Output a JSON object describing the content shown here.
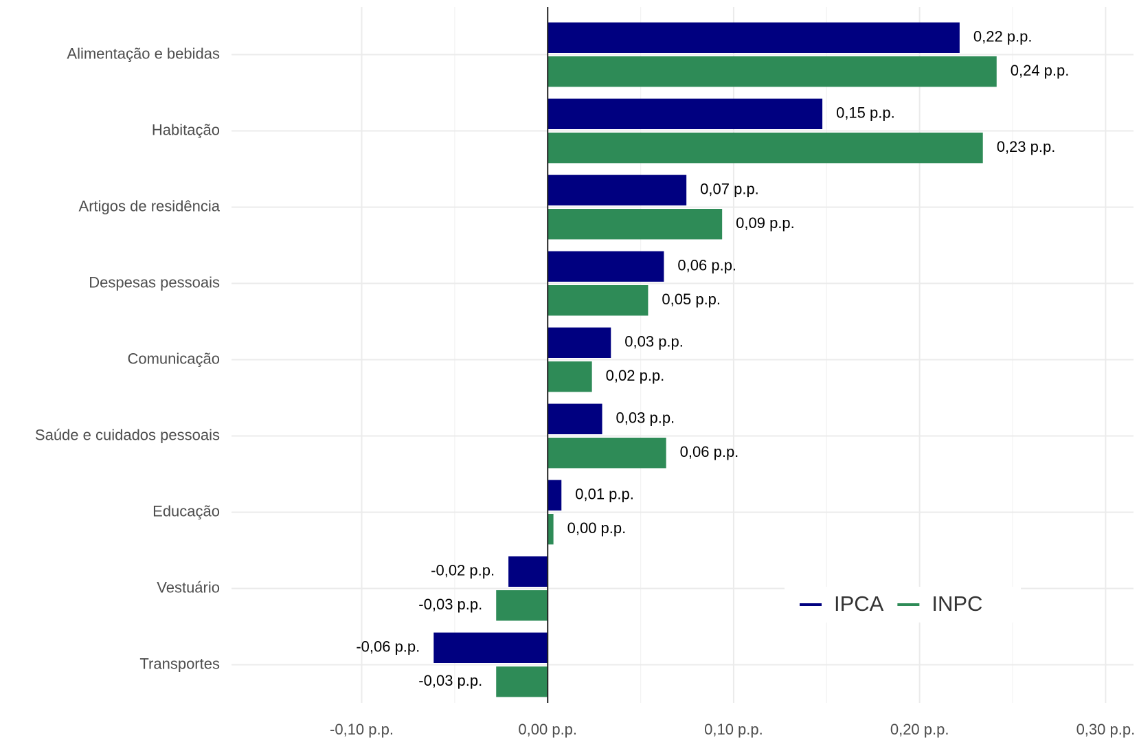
{
  "chart_data": {
    "type": "bar",
    "orientation": "horizontal",
    "categories": [
      "Alimentação e bebidas",
      "Habitação",
      "Artigos de residência",
      "Despesas pessoais",
      "Comunicação",
      "Saúde e cuidados pessoais",
      "Educação",
      "Vestuário",
      "Transportes"
    ],
    "series": [
      {
        "name": "IPCA",
        "color": "#000080",
        "values": [
          0.2215,
          0.1477,
          0.0746,
          0.0625,
          0.034,
          0.0293,
          0.0074,
          -0.0211,
          -0.0613
        ],
        "value_labels": [
          "0,22 p.p.",
          "0,15 p.p.",
          "0,07 p.p.",
          "0,06 p.p.",
          "0,03 p.p.",
          "0,03 p.p.",
          "0,01 p.p.",
          "-0,02 p.p.",
          "-0,06 p.p."
        ]
      },
      {
        "name": "INPC",
        "color": "#2e8b57",
        "values": [
          0.2414,
          0.234,
          0.0938,
          0.054,
          0.0238,
          0.0637,
          0.0031,
          -0.0277,
          -0.0277
        ],
        "value_labels": [
          "0,24 p.p.",
          "0,23 p.p.",
          "0,09 p.p.",
          "0,05 p.p.",
          "0,02 p.p.",
          "0,06 p.p.",
          "0,00 p.p.",
          "-0,03 p.p.",
          "-0,03 p.p."
        ]
      }
    ],
    "xlim": [
      -0.17,
      0.315
    ],
    "xticks": [
      {
        "value": -0.1,
        "label": "-0,10 p.p."
      },
      {
        "value": 0,
        "label": "0,00 p.p."
      },
      {
        "value": 0.1,
        "label": "0,10 p.p."
      },
      {
        "value": 0.2,
        "label": "0,20 p.p."
      },
      {
        "value": 0.3,
        "label": "0,30 p.p."
      }
    ],
    "grid": true,
    "legend": "bottom-right"
  }
}
